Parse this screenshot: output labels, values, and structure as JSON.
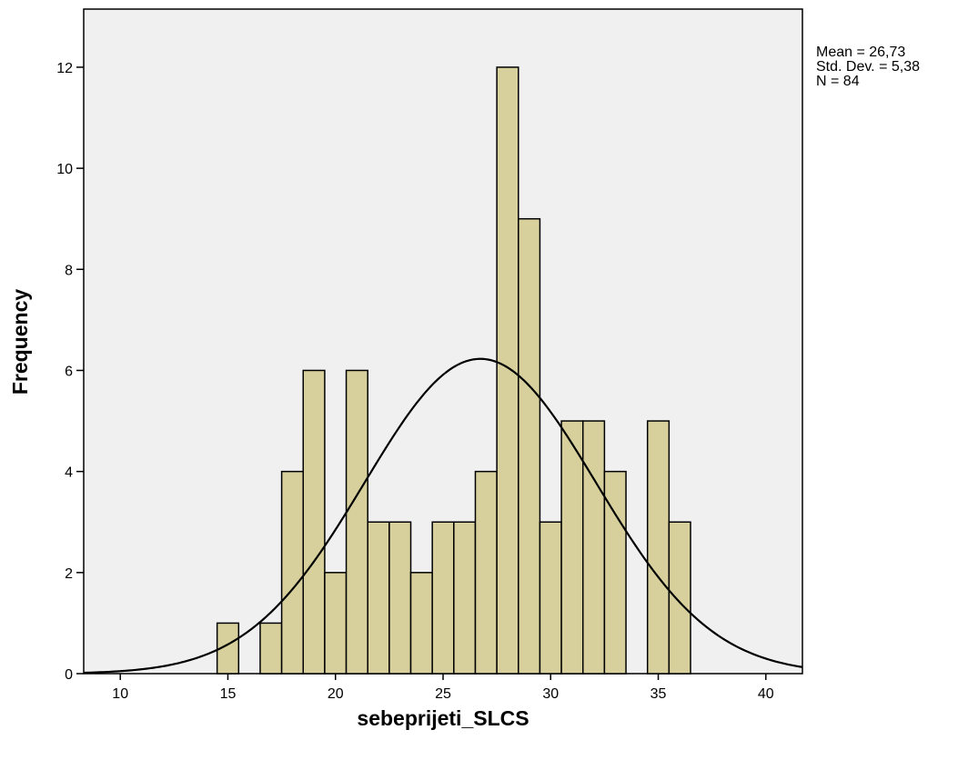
{
  "chart_data": {
    "type": "bar",
    "title": "",
    "xlabel": "sebeprijeti_SLCS",
    "ylabel": "Frequency",
    "xlim": [
      8.3,
      41.7
    ],
    "ylim": [
      0,
      13.15
    ],
    "x_ticks": [
      10,
      15,
      20,
      25,
      30,
      35,
      40
    ],
    "y_ticks": [
      0,
      2,
      4,
      6,
      8,
      10,
      12
    ],
    "bin_width": 1,
    "bins": [
      {
        "x": 15,
        "count": 1
      },
      {
        "x": 17,
        "count": 1
      },
      {
        "x": 18,
        "count": 4
      },
      {
        "x": 19,
        "count": 6
      },
      {
        "x": 20,
        "count": 2
      },
      {
        "x": 21,
        "count": 6
      },
      {
        "x": 22,
        "count": 3
      },
      {
        "x": 23,
        "count": 3
      },
      {
        "x": 24,
        "count": 2
      },
      {
        "x": 25,
        "count": 3
      },
      {
        "x": 26,
        "count": 3
      },
      {
        "x": 27,
        "count": 4
      },
      {
        "x": 28,
        "count": 12
      },
      {
        "x": 29,
        "count": 9
      },
      {
        "x": 30,
        "count": 3
      },
      {
        "x": 31,
        "count": 5
      },
      {
        "x": 32,
        "count": 5
      },
      {
        "x": 33,
        "count": 4
      },
      {
        "x": 35,
        "count": 5
      },
      {
        "x": 36,
        "count": 3
      }
    ],
    "normal_curve": {
      "mean": 26.73,
      "sd": 5.38,
      "n": 84
    },
    "bar_color": "#d7d09d",
    "plot_background": "#f0f0f0",
    "grid": false
  },
  "stats": {
    "mean": "Mean = 26,73",
    "std": "Std. Dev. = 5,38",
    "n": "N = 84"
  }
}
